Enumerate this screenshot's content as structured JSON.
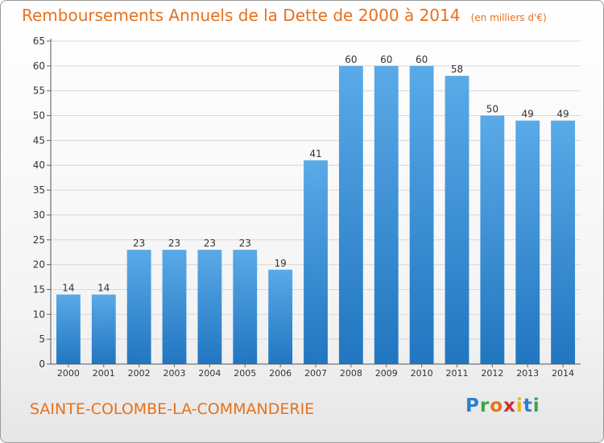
{
  "title": "Remboursements Annuels de la Dette de 2000 à 2014",
  "unit_note": "(en milliers d'€)",
  "commune": "SAINTE-COLOMBE-LA-COMMANDERIE",
  "logo": "Proxiti",
  "colors": {
    "title": "#e8701c",
    "bar_light": "#5aaae8",
    "bar_dark": "#2176c0"
  },
  "chart_data": {
    "type": "bar",
    "title": "Remboursements Annuels de la Dette de 2000 à 2014",
    "categories": [
      "2000",
      "2001",
      "2002",
      "2003",
      "2004",
      "2005",
      "2006",
      "2007",
      "2008",
      "2009",
      "2010",
      "2011",
      "2012",
      "2013",
      "2014"
    ],
    "values": [
      14,
      14,
      23,
      23,
      23,
      23,
      19,
      41,
      60,
      60,
      60,
      58,
      50,
      49,
      49
    ],
    "ylim": [
      0,
      65
    ],
    "yticks": [
      0,
      5,
      10,
      15,
      20,
      25,
      30,
      35,
      40,
      45,
      50,
      55,
      60,
      65
    ],
    "grid": true,
    "data_labels": true
  }
}
